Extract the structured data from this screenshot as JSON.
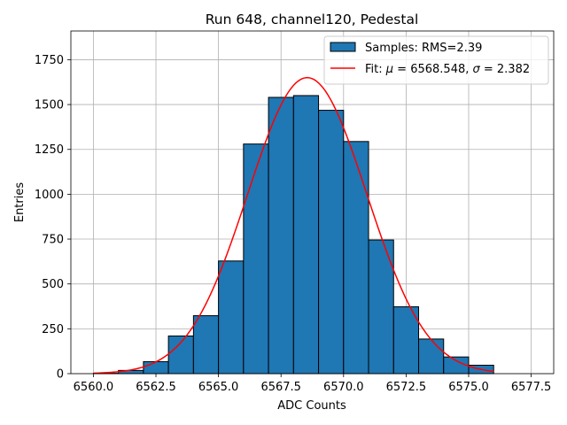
{
  "chart_data": {
    "type": "bar",
    "subtype": "histogram",
    "title": "Run 648, channel120, Pedestal",
    "xlabel": "ADC Counts",
    "ylabel": "Entries",
    "xlim": [
      6559.1,
      6578.4
    ],
    "ylim": [
      0,
      1910
    ],
    "grid": true,
    "legend_position": "top-right",
    "x_ticks": [
      6560.0,
      6562.5,
      6565.0,
      6567.5,
      6570.0,
      6572.5,
      6575.0,
      6577.5
    ],
    "x_tick_labels": [
      "6560.0",
      "6562.5",
      "6565.0",
      "6567.5",
      "6570.0",
      "6572.5",
      "6575.0",
      "6577.5"
    ],
    "y_ticks": [
      0,
      250,
      500,
      750,
      1000,
      1250,
      1500,
      1750
    ],
    "y_tick_labels": [
      "0",
      "250",
      "500",
      "750",
      "1000",
      "1250",
      "1500",
      "1750"
    ],
    "bin_edges": [
      6560,
      6561,
      6562,
      6563,
      6564,
      6565,
      6566,
      6567,
      6568,
      6569,
      6570,
      6571,
      6572,
      6573,
      6574,
      6575,
      6576
    ],
    "counts": [
      2,
      18,
      67,
      210,
      323,
      628,
      1280,
      1540,
      1550,
      1468,
      1294,
      745,
      373,
      193,
      93,
      47
    ],
    "fit": {
      "mu": 6568.548,
      "sigma": 2.382,
      "peak": 1650,
      "x_range": [
        6560,
        6576
      ]
    },
    "series": [
      {
        "name": "Samples: RMS=2.39",
        "kind": "histogram",
        "color": "#1f77b4"
      },
      {
        "name": "Fit: μ = 6568.548, σ = 2.382",
        "kind": "line",
        "color": "#ff0000"
      }
    ],
    "legend": {
      "hist_label": "Samples: RMS=2.39",
      "fit_prefix": "Fit: ",
      "mu_symbol": "μ",
      "mu_value": " = 6568.548, ",
      "sigma_symbol": "σ",
      "sigma_value": " = 2.382"
    }
  }
}
